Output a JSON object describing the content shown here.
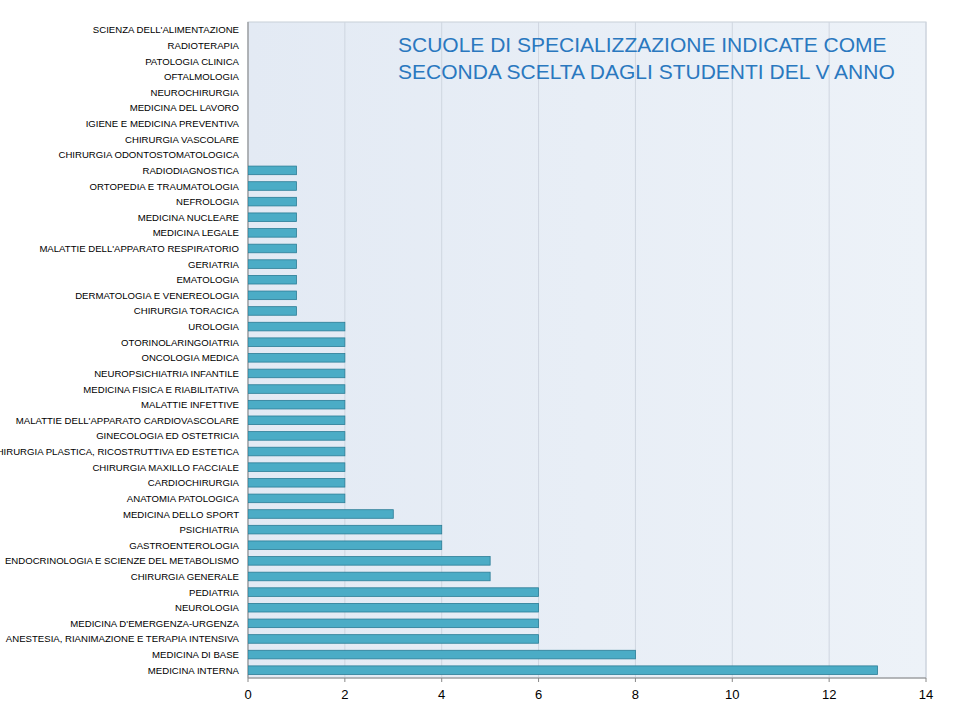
{
  "chart_data": {
    "type": "bar",
    "orientation": "horizontal",
    "title": "SCUOLE DI SPECIALIZZAZIONE INDICATE COME SECONDA SCELTA DAGLI STUDENTI DEL V ANNO",
    "categories": [
      "SCIENZA DELL'ALIMENTAZIONE",
      "RADIOTERAPIA",
      "PATOLOGIA CLINICA",
      "OFTALMOLOGIA",
      "NEUROCHIRURGIA",
      "MEDICINA DEL LAVORO",
      "IGIENE E MEDICINA PREVENTIVA",
      "CHIRURGIA VASCOLARE",
      "CHIRURGIA ODONTOSTOMATOLOGICA",
      "RADIODIAGNOSTICA",
      "ORTOPEDIA E TRAUMATOLOGIA",
      "NEFROLOGIA",
      "MEDICINA NUCLEARE",
      "MEDICINA LEGALE",
      "MALATTIE DELL'APPARATO RESPIRATORIO",
      "GERIATRIA",
      "EMATOLOGIA",
      "DERMATOLOGIA E VENEREOLOGIA",
      "CHIRURGIA TORACICA",
      "UROLOGIA",
      "OTORINOLARINGOIATRIA",
      "ONCOLOGIA MEDICA",
      "NEUROPSICHIATRIA INFANTILE",
      "MEDICINA FISICA E RIABILITATIVA",
      "MALATTIE INFETTIVE",
      "MALATTIE DELL'APPARATO CARDIOVASCOLARE",
      "GINECOLOGIA ED OSTETRICIA",
      "CHIRURGIA PLASTICA, RICOSTRUTTIVA ED ESTETICA",
      "CHIRURGIA MAXILLO FACCIALE",
      "CARDIOCHIRURGIA",
      "ANATOMIA PATOLOGICA",
      "MEDICINA DELLO SPORT",
      "PSICHIATRIA",
      "GASTROENTEROLOGIA",
      "ENDOCRINOLOGIA E SCIENZE DEL METABOLISMO",
      "CHIRURGIA GENERALE",
      "PEDIATRIA",
      "NEUROLOGIA",
      "MEDICINA D'EMERGENZA-URGENZA",
      "ANESTESIA, RIANIMAZIONE E TERAPIA INTENSIVA",
      "MEDICINA DI BASE",
      "MEDICINA INTERNA"
    ],
    "values": [
      0,
      0,
      0,
      0,
      0,
      0,
      0,
      0,
      0,
      1,
      1,
      1,
      1,
      1,
      1,
      1,
      1,
      1,
      1,
      2,
      2,
      2,
      2,
      2,
      2,
      2,
      2,
      2,
      2,
      2,
      2,
      3,
      4,
      4,
      5,
      5,
      6,
      6,
      6,
      6,
      8,
      13
    ],
    "color": "#4bacc6",
    "xlim": [
      0,
      14
    ],
    "xticks": [
      0,
      2,
      4,
      6,
      8,
      10,
      12,
      14
    ],
    "grid": true
  }
}
